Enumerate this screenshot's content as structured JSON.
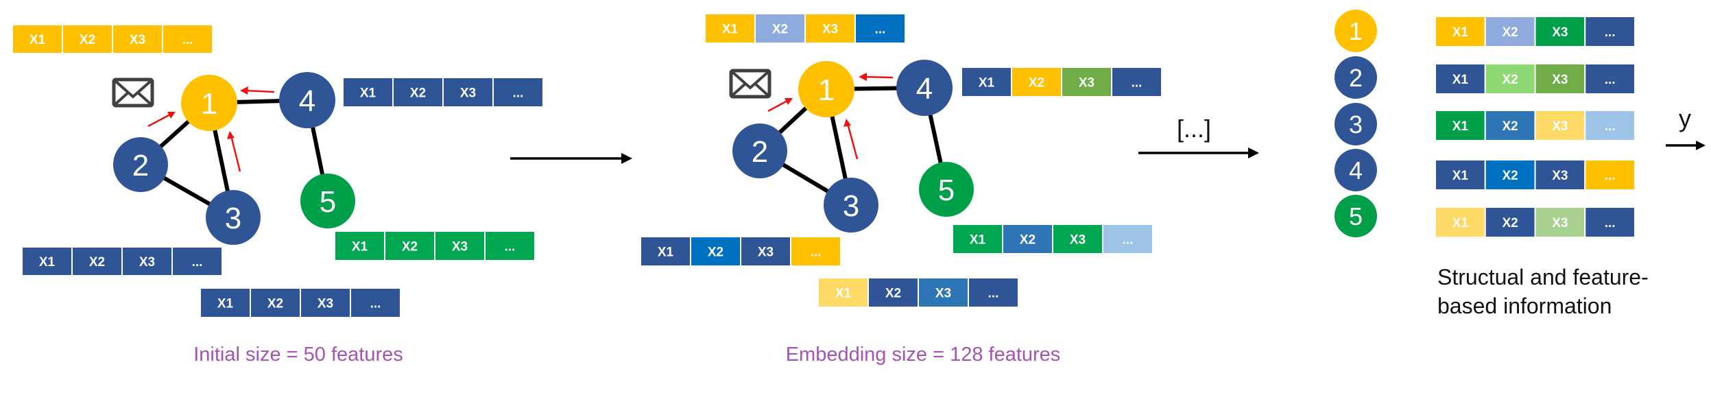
{
  "colors": {
    "yellow": "#FFC000",
    "navy": "#2F5597",
    "green": "#00A04B",
    "green_bar": "#00A650",
    "periwinkle": "#8FAADC",
    "bright_blue": "#0070C0",
    "olive_green": "#70AD47",
    "mid_blue": "#2E75B6",
    "light_blue": "#9DC3E6",
    "light_yellow": "#FFD966",
    "light_green": "#8ED973",
    "sage": "#A9D18E",
    "arrow_red": "#EE1111"
  },
  "icons": {
    "message": "envelope-icon"
  },
  "left_graph": {
    "nodes": [
      {
        "label": "1",
        "color": "#FFC000"
      },
      {
        "label": "2",
        "color": "#2F5597"
      },
      {
        "label": "3",
        "color": "#2F5597"
      },
      {
        "label": "4",
        "color": "#2F5597"
      },
      {
        "label": "5",
        "color": "#00A04B"
      }
    ],
    "vectors": [
      {
        "cells": [
          {
            "text": "X1",
            "color": "#FFC000"
          },
          {
            "text": "X2",
            "color": "#FFC000"
          },
          {
            "text": "X3",
            "color": "#FFC000"
          },
          {
            "text": "...",
            "color": "#FFC000"
          }
        ]
      },
      {
        "cells": [
          {
            "text": "X1",
            "color": "#2F5597"
          },
          {
            "text": "X2",
            "color": "#2F5597"
          },
          {
            "text": "X3",
            "color": "#2F5597"
          },
          {
            "text": "...",
            "color": "#2F5597"
          }
        ]
      },
      {
        "cells": [
          {
            "text": "X1",
            "color": "#2F5597"
          },
          {
            "text": "X2",
            "color": "#2F5597"
          },
          {
            "text": "X3",
            "color": "#2F5597"
          },
          {
            "text": "...",
            "color": "#2F5597"
          }
        ]
      },
      {
        "cells": [
          {
            "text": "X1",
            "color": "#00A650"
          },
          {
            "text": "X2",
            "color": "#00A650"
          },
          {
            "text": "X3",
            "color": "#00A650"
          },
          {
            "text": "...",
            "color": "#00A650"
          }
        ]
      },
      {
        "cells": [
          {
            "text": "X1",
            "color": "#2F5597"
          },
          {
            "text": "X2",
            "color": "#2F5597"
          },
          {
            "text": "X3",
            "color": "#2F5597"
          },
          {
            "text": "...",
            "color": "#2F5597"
          }
        ]
      }
    ],
    "caption": "Initial size = 50 features"
  },
  "right_graph": {
    "nodes": [
      {
        "label": "1",
        "color": "#FFC000"
      },
      {
        "label": "2",
        "color": "#2F5597"
      },
      {
        "label": "3",
        "color": "#2F5597"
      },
      {
        "label": "4",
        "color": "#2F5597"
      },
      {
        "label": "5",
        "color": "#00A04B"
      }
    ],
    "vectors": [
      {
        "cells": [
          {
            "text": "X1",
            "color": "#FFC000"
          },
          {
            "text": "X2",
            "color": "#8FAADC"
          },
          {
            "text": "X3",
            "color": "#FFC000"
          },
          {
            "text": "...",
            "color": "#0070C0"
          }
        ]
      },
      {
        "cells": [
          {
            "text": "X1",
            "color": "#2F5597"
          },
          {
            "text": "X2",
            "color": "#FFC000"
          },
          {
            "text": "X3",
            "color": "#70AD47"
          },
          {
            "text": "...",
            "color": "#2F5597"
          }
        ]
      },
      {
        "cells": [
          {
            "text": "X1",
            "color": "#2F5597"
          },
          {
            "text": "X2",
            "color": "#0070C0"
          },
          {
            "text": "X3",
            "color": "#2F5597"
          },
          {
            "text": "...",
            "color": "#FFC000"
          }
        ]
      },
      {
        "cells": [
          {
            "text": "X1",
            "color": "#00A650"
          },
          {
            "text": "X2",
            "color": "#2E75B6"
          },
          {
            "text": "X3",
            "color": "#00A650"
          },
          {
            "text": "...",
            "color": "#9DC3E6"
          }
        ]
      },
      {
        "cells": [
          {
            "text": "X1",
            "color": "#FFD966"
          },
          {
            "text": "X2",
            "color": "#2F5597"
          },
          {
            "text": "X3",
            "color": "#2E75B6"
          },
          {
            "text": "...",
            "color": "#2F5597"
          }
        ]
      }
    ],
    "caption": "Embedding size = 128 features"
  },
  "ellipsis_label": "[...]",
  "legend": {
    "nodes": [
      {
        "label": "1",
        "color": "#FFC000"
      },
      {
        "label": "2",
        "color": "#2F5597"
      },
      {
        "label": "3",
        "color": "#2F5597"
      },
      {
        "label": "4",
        "color": "#2F5597"
      },
      {
        "label": "5",
        "color": "#00A04B"
      }
    ],
    "vectors": [
      {
        "cells": [
          {
            "text": "X1",
            "color": "#FFC000"
          },
          {
            "text": "X2",
            "color": "#8FAADC"
          },
          {
            "text": "X3",
            "color": "#00A04B"
          },
          {
            "text": "...",
            "color": "#2F5597"
          }
        ]
      },
      {
        "cells": [
          {
            "text": "X1",
            "color": "#2F5597"
          },
          {
            "text": "X2",
            "color": "#8ED973"
          },
          {
            "text": "X3",
            "color": "#70AD47"
          },
          {
            "text": "...",
            "color": "#2F5597"
          }
        ]
      },
      {
        "cells": [
          {
            "text": "X1",
            "color": "#00A04B"
          },
          {
            "text": "X2",
            "color": "#2E75B6"
          },
          {
            "text": "X3",
            "color": "#FFD966"
          },
          {
            "text": "...",
            "color": "#9DC3E6"
          }
        ]
      },
      {
        "cells": [
          {
            "text": "X1",
            "color": "#2F5597"
          },
          {
            "text": "X2",
            "color": "#0070C0"
          },
          {
            "text": "X3",
            "color": "#2F5597"
          },
          {
            "text": "...",
            "color": "#FFC000"
          }
        ]
      },
      {
        "cells": [
          {
            "text": "X1",
            "color": "#FFD966"
          },
          {
            "text": "X2",
            "color": "#2F5597"
          },
          {
            "text": "X3",
            "color": "#A9D18E"
          },
          {
            "text": "...",
            "color": "#2F5597"
          }
        ]
      }
    ],
    "caption_line1": "Structual and feature-",
    "caption_line2": "based information"
  },
  "output_label": "y"
}
